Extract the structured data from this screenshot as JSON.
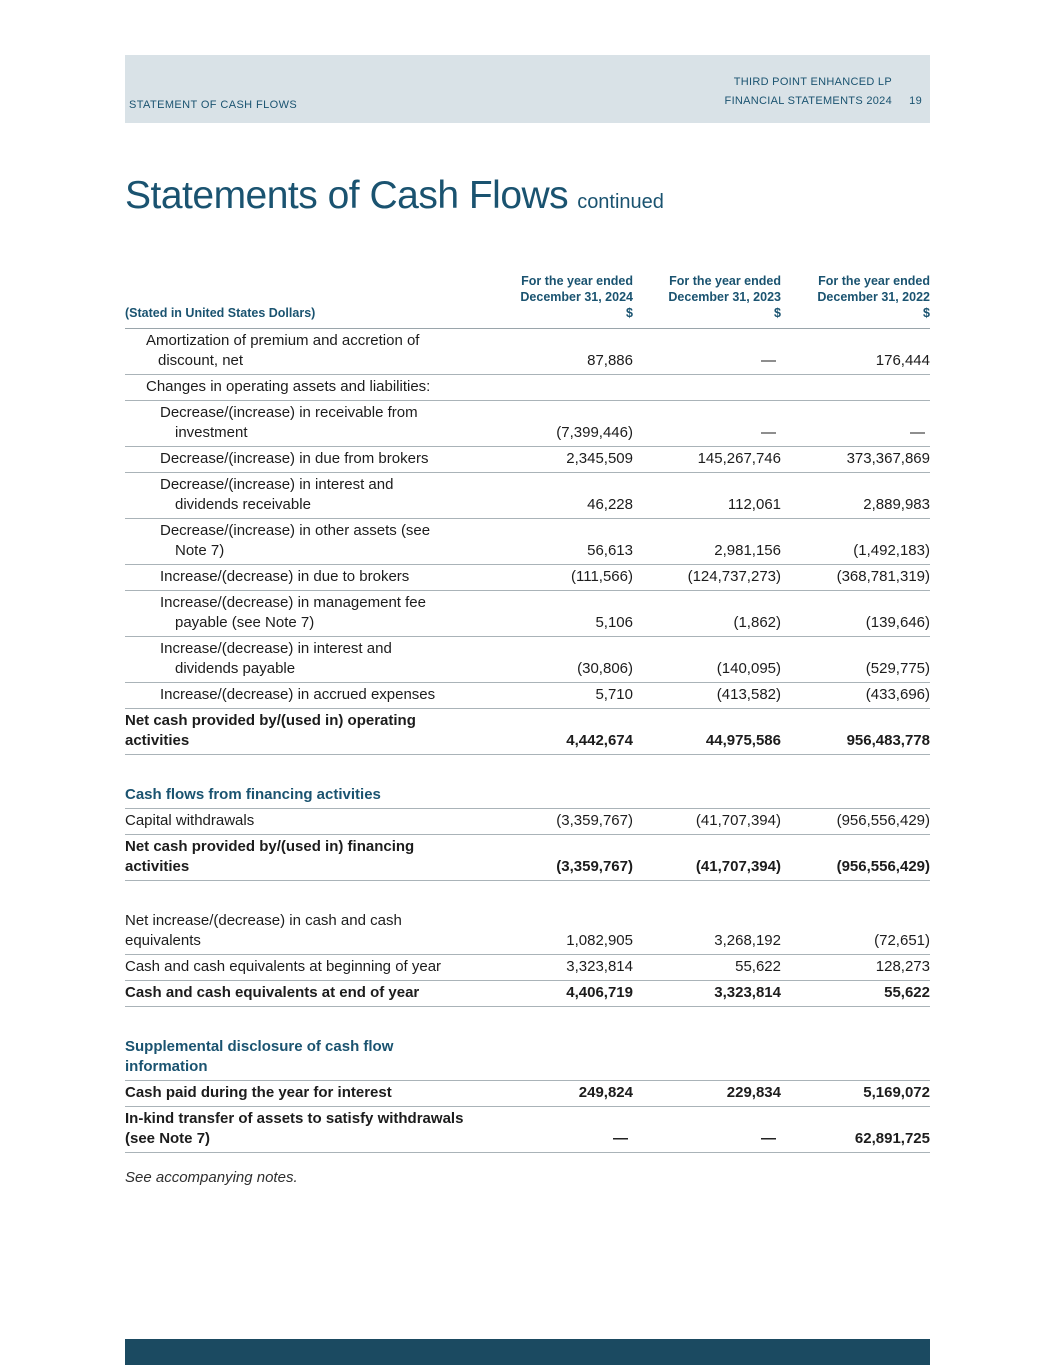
{
  "header": {
    "left": "STATEMENT OF CASH FLOWS",
    "company": "THIRD POINT ENHANCED LP",
    "document": "FINANCIAL STATEMENTS 2024",
    "page_number": "19"
  },
  "title": {
    "main": "Statements of Cash Flows",
    "suffix": "continued"
  },
  "colors": {
    "accent_blue": "#1a5370",
    "header_band": "#d9e2e7",
    "bottom_bar": "#1b4a61",
    "rule_line": "#aab3b8"
  },
  "table": {
    "stated_in": "(Stated in United States Dollars)",
    "columns": [
      {
        "line1": "For the year ended",
        "line2": "December 31, 2024",
        "currency": "$"
      },
      {
        "line1": "For the year ended",
        "line2": "December 31, 2023",
        "currency": "$"
      },
      {
        "line1": "For the year ended",
        "line2": "December 31, 2022",
        "currency": "$"
      }
    ],
    "rows": [
      {
        "type": "data",
        "indent": 1,
        "lines": [
          "Amortization of premium and accretion of",
          "discount, net"
        ],
        "values": [
          "87,886",
          "—",
          "176,444"
        ]
      },
      {
        "type": "subheader",
        "indent": 1,
        "lines": [
          "Changes in operating assets and liabilities:"
        ],
        "values": []
      },
      {
        "type": "data",
        "indent": 2,
        "lines": [
          "Decrease/(increase) in receivable from",
          "investment"
        ],
        "values": [
          "(7,399,446)",
          "—",
          "—"
        ]
      },
      {
        "type": "data",
        "indent": 2,
        "lines": [
          "Decrease/(increase) in due from brokers"
        ],
        "values": [
          "2,345,509",
          "145,267,746",
          "373,367,869"
        ]
      },
      {
        "type": "data",
        "indent": 2,
        "lines": [
          "Decrease/(increase) in interest and",
          "dividends receivable"
        ],
        "values": [
          "46,228",
          "112,061",
          "2,889,983"
        ]
      },
      {
        "type": "data",
        "indent": 2,
        "lines": [
          "Decrease/(increase) in other assets (see",
          "Note 7)"
        ],
        "values": [
          "56,613",
          "2,981,156",
          "(1,492,183)"
        ]
      },
      {
        "type": "data",
        "indent": 2,
        "lines": [
          "Increase/(decrease) in due to brokers"
        ],
        "values": [
          "(111,566)",
          "(124,737,273)",
          "(368,781,319)"
        ]
      },
      {
        "type": "data",
        "indent": 2,
        "lines": [
          "Increase/(decrease) in management fee",
          "payable (see Note 7)"
        ],
        "values": [
          "5,106",
          "(1,862)",
          "(139,646)"
        ]
      },
      {
        "type": "data",
        "indent": 2,
        "lines": [
          "Increase/(decrease) in interest and",
          "dividends payable"
        ],
        "values": [
          "(30,806)",
          "(140,095)",
          "(529,775)"
        ]
      },
      {
        "type": "data",
        "indent": 2,
        "lines": [
          "Increase/(decrease) in accrued expenses"
        ],
        "values": [
          "5,710",
          "(413,582)",
          "(433,696)"
        ]
      },
      {
        "type": "total",
        "indent": 0,
        "lines": [
          "Net cash provided by/(used in) operating",
          "activities"
        ],
        "values": [
          "4,442,674",
          "44,975,586",
          "956,483,778"
        ]
      },
      {
        "type": "spacer"
      },
      {
        "type": "section",
        "indent": 0,
        "lines": [
          "Cash flows from financing activities"
        ],
        "values": []
      },
      {
        "type": "data",
        "indent": 0,
        "lines": [
          "Capital withdrawals"
        ],
        "values": [
          "(3,359,767)",
          "(41,707,394)",
          "(956,556,429)"
        ]
      },
      {
        "type": "total",
        "indent": 0,
        "lines": [
          "Net cash provided by/(used in) financing",
          "activities"
        ],
        "values": [
          "(3,359,767)",
          "(41,707,394)",
          "(956,556,429)"
        ]
      },
      {
        "type": "spacer"
      },
      {
        "type": "data",
        "indent": 0,
        "lines": [
          "Net increase/(decrease) in cash and cash",
          "equivalents"
        ],
        "values": [
          "1,082,905",
          "3,268,192",
          "(72,651)"
        ]
      },
      {
        "type": "data",
        "indent": 0,
        "lines": [
          "Cash and cash equivalents at beginning of year"
        ],
        "values": [
          "3,323,814",
          "55,622",
          "128,273"
        ]
      },
      {
        "type": "total",
        "indent": 0,
        "lines": [
          "Cash and cash equivalents at end of year"
        ],
        "values": [
          "4,406,719",
          "3,323,814",
          "55,622"
        ]
      },
      {
        "type": "spacer"
      },
      {
        "type": "section",
        "indent": 0,
        "lines": [
          "Supplemental disclosure of cash flow",
          "information"
        ],
        "values": []
      },
      {
        "type": "total",
        "indent": 0,
        "lines": [
          "Cash paid during the year for interest"
        ],
        "values": [
          "249,824",
          "229,834",
          "5,169,072"
        ]
      },
      {
        "type": "total",
        "indent": 0,
        "lines": [
          "In-kind transfer of assets to satisfy withdrawals",
          "(see Note 7)"
        ],
        "values": [
          "—",
          "—",
          "62,891,725"
        ]
      }
    ]
  },
  "footer": {
    "note": "See accompanying notes."
  }
}
